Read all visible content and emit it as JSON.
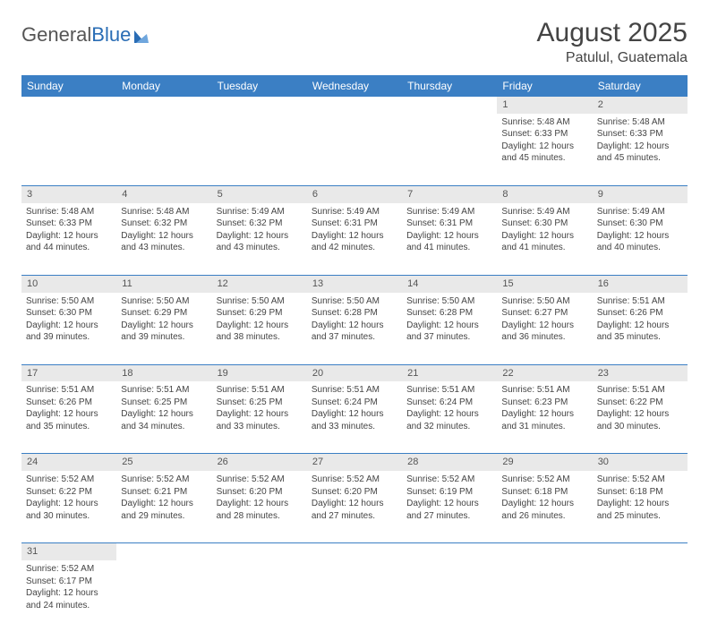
{
  "brand": {
    "part1": "General",
    "part2": "Blue"
  },
  "title": "August 2025",
  "location": "Patulul, Guatemala",
  "colors": {
    "header_bg": "#3b7fc4",
    "header_text": "#ffffff",
    "daynum_bg": "#e9e9e9",
    "row_divider": "#3b7fc4",
    "text": "#444444",
    "brand_gray": "#555555",
    "brand_blue": "#2a6db5"
  },
  "weekdays": [
    "Sunday",
    "Monday",
    "Tuesday",
    "Wednesday",
    "Thursday",
    "Friday",
    "Saturday"
  ],
  "weeks": [
    [
      null,
      null,
      null,
      null,
      null,
      {
        "n": "1",
        "lines": [
          "Sunrise: 5:48 AM",
          "Sunset: 6:33 PM",
          "Daylight: 12 hours",
          "and 45 minutes."
        ]
      },
      {
        "n": "2",
        "lines": [
          "Sunrise: 5:48 AM",
          "Sunset: 6:33 PM",
          "Daylight: 12 hours",
          "and 45 minutes."
        ]
      }
    ],
    [
      {
        "n": "3",
        "lines": [
          "Sunrise: 5:48 AM",
          "Sunset: 6:33 PM",
          "Daylight: 12 hours",
          "and 44 minutes."
        ]
      },
      {
        "n": "4",
        "lines": [
          "Sunrise: 5:48 AM",
          "Sunset: 6:32 PM",
          "Daylight: 12 hours",
          "and 43 minutes."
        ]
      },
      {
        "n": "5",
        "lines": [
          "Sunrise: 5:49 AM",
          "Sunset: 6:32 PM",
          "Daylight: 12 hours",
          "and 43 minutes."
        ]
      },
      {
        "n": "6",
        "lines": [
          "Sunrise: 5:49 AM",
          "Sunset: 6:31 PM",
          "Daylight: 12 hours",
          "and 42 minutes."
        ]
      },
      {
        "n": "7",
        "lines": [
          "Sunrise: 5:49 AM",
          "Sunset: 6:31 PM",
          "Daylight: 12 hours",
          "and 41 minutes."
        ]
      },
      {
        "n": "8",
        "lines": [
          "Sunrise: 5:49 AM",
          "Sunset: 6:30 PM",
          "Daylight: 12 hours",
          "and 41 minutes."
        ]
      },
      {
        "n": "9",
        "lines": [
          "Sunrise: 5:49 AM",
          "Sunset: 6:30 PM",
          "Daylight: 12 hours",
          "and 40 minutes."
        ]
      }
    ],
    [
      {
        "n": "10",
        "lines": [
          "Sunrise: 5:50 AM",
          "Sunset: 6:30 PM",
          "Daylight: 12 hours",
          "and 39 minutes."
        ]
      },
      {
        "n": "11",
        "lines": [
          "Sunrise: 5:50 AM",
          "Sunset: 6:29 PM",
          "Daylight: 12 hours",
          "and 39 minutes."
        ]
      },
      {
        "n": "12",
        "lines": [
          "Sunrise: 5:50 AM",
          "Sunset: 6:29 PM",
          "Daylight: 12 hours",
          "and 38 minutes."
        ]
      },
      {
        "n": "13",
        "lines": [
          "Sunrise: 5:50 AM",
          "Sunset: 6:28 PM",
          "Daylight: 12 hours",
          "and 37 minutes."
        ]
      },
      {
        "n": "14",
        "lines": [
          "Sunrise: 5:50 AM",
          "Sunset: 6:28 PM",
          "Daylight: 12 hours",
          "and 37 minutes."
        ]
      },
      {
        "n": "15",
        "lines": [
          "Sunrise: 5:50 AM",
          "Sunset: 6:27 PM",
          "Daylight: 12 hours",
          "and 36 minutes."
        ]
      },
      {
        "n": "16",
        "lines": [
          "Sunrise: 5:51 AM",
          "Sunset: 6:26 PM",
          "Daylight: 12 hours",
          "and 35 minutes."
        ]
      }
    ],
    [
      {
        "n": "17",
        "lines": [
          "Sunrise: 5:51 AM",
          "Sunset: 6:26 PM",
          "Daylight: 12 hours",
          "and 35 minutes."
        ]
      },
      {
        "n": "18",
        "lines": [
          "Sunrise: 5:51 AM",
          "Sunset: 6:25 PM",
          "Daylight: 12 hours",
          "and 34 minutes."
        ]
      },
      {
        "n": "19",
        "lines": [
          "Sunrise: 5:51 AM",
          "Sunset: 6:25 PM",
          "Daylight: 12 hours",
          "and 33 minutes."
        ]
      },
      {
        "n": "20",
        "lines": [
          "Sunrise: 5:51 AM",
          "Sunset: 6:24 PM",
          "Daylight: 12 hours",
          "and 33 minutes."
        ]
      },
      {
        "n": "21",
        "lines": [
          "Sunrise: 5:51 AM",
          "Sunset: 6:24 PM",
          "Daylight: 12 hours",
          "and 32 minutes."
        ]
      },
      {
        "n": "22",
        "lines": [
          "Sunrise: 5:51 AM",
          "Sunset: 6:23 PM",
          "Daylight: 12 hours",
          "and 31 minutes."
        ]
      },
      {
        "n": "23",
        "lines": [
          "Sunrise: 5:51 AM",
          "Sunset: 6:22 PM",
          "Daylight: 12 hours",
          "and 30 minutes."
        ]
      }
    ],
    [
      {
        "n": "24",
        "lines": [
          "Sunrise: 5:52 AM",
          "Sunset: 6:22 PM",
          "Daylight: 12 hours",
          "and 30 minutes."
        ]
      },
      {
        "n": "25",
        "lines": [
          "Sunrise: 5:52 AM",
          "Sunset: 6:21 PM",
          "Daylight: 12 hours",
          "and 29 minutes."
        ]
      },
      {
        "n": "26",
        "lines": [
          "Sunrise: 5:52 AM",
          "Sunset: 6:20 PM",
          "Daylight: 12 hours",
          "and 28 minutes."
        ]
      },
      {
        "n": "27",
        "lines": [
          "Sunrise: 5:52 AM",
          "Sunset: 6:20 PM",
          "Daylight: 12 hours",
          "and 27 minutes."
        ]
      },
      {
        "n": "28",
        "lines": [
          "Sunrise: 5:52 AM",
          "Sunset: 6:19 PM",
          "Daylight: 12 hours",
          "and 27 minutes."
        ]
      },
      {
        "n": "29",
        "lines": [
          "Sunrise: 5:52 AM",
          "Sunset: 6:18 PM",
          "Daylight: 12 hours",
          "and 26 minutes."
        ]
      },
      {
        "n": "30",
        "lines": [
          "Sunrise: 5:52 AM",
          "Sunset: 6:18 PM",
          "Daylight: 12 hours",
          "and 25 minutes."
        ]
      }
    ],
    [
      {
        "n": "31",
        "lines": [
          "Sunrise: 5:52 AM",
          "Sunset: 6:17 PM",
          "Daylight: 12 hours",
          "and 24 minutes."
        ]
      },
      null,
      null,
      null,
      null,
      null,
      null
    ]
  ]
}
